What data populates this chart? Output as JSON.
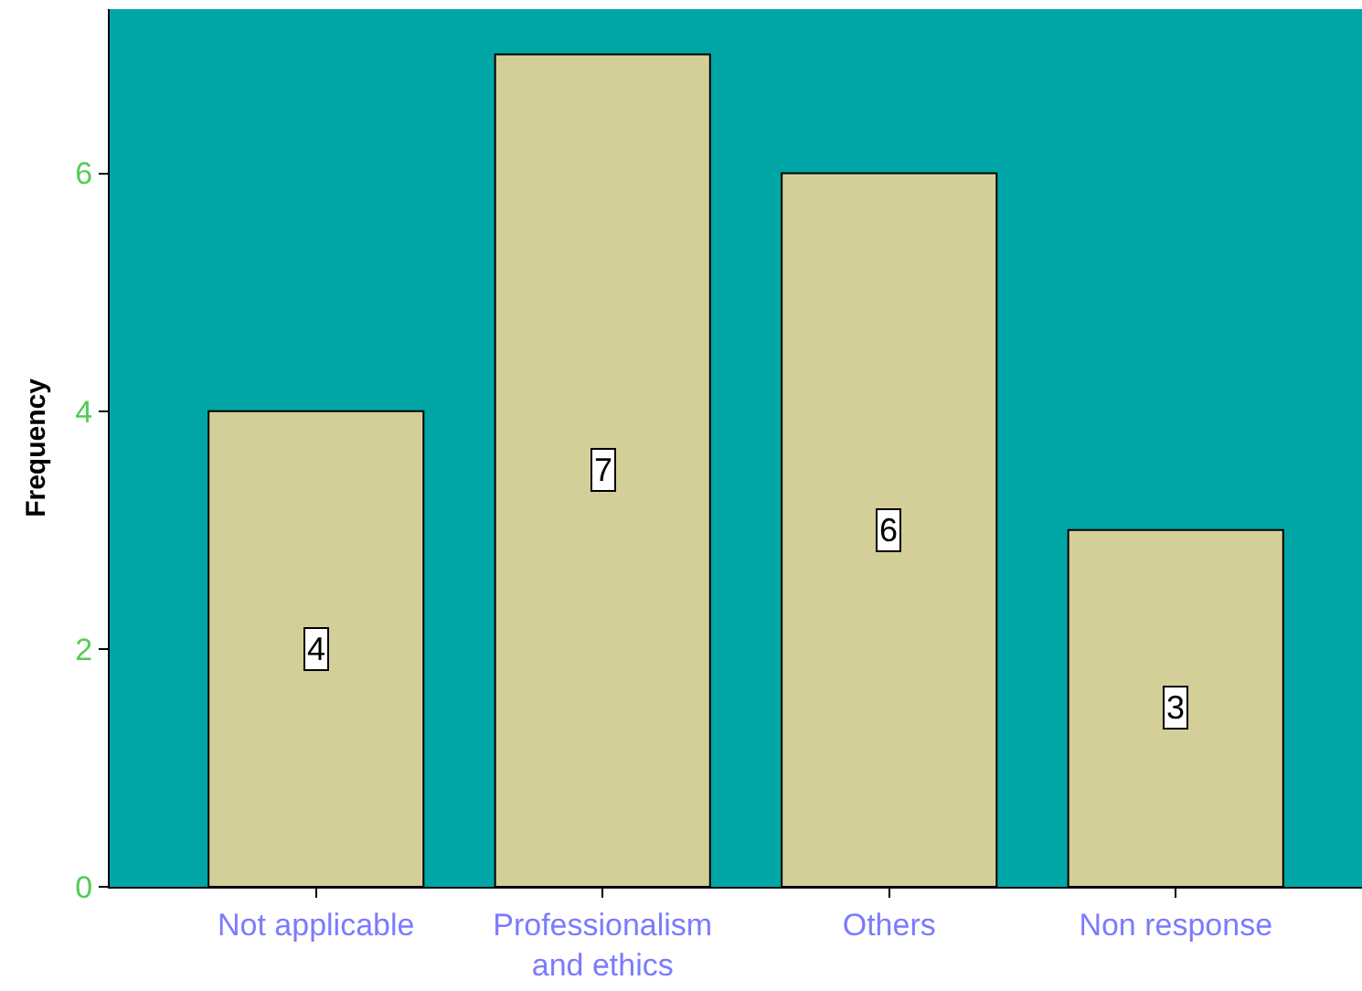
{
  "chart_data": {
    "type": "bar",
    "ylabel": "Frequency",
    "categories": [
      "Not applicable",
      "Professionalism and ethics",
      "Others",
      "Non response"
    ],
    "values": [
      4,
      7,
      6,
      3
    ],
    "color": "#d4cf98",
    "ylim": [
      0,
      7.38
    ],
    "yticks": [
      0,
      2,
      4,
      6
    ],
    "grid": false,
    "data_labels": true
  }
}
